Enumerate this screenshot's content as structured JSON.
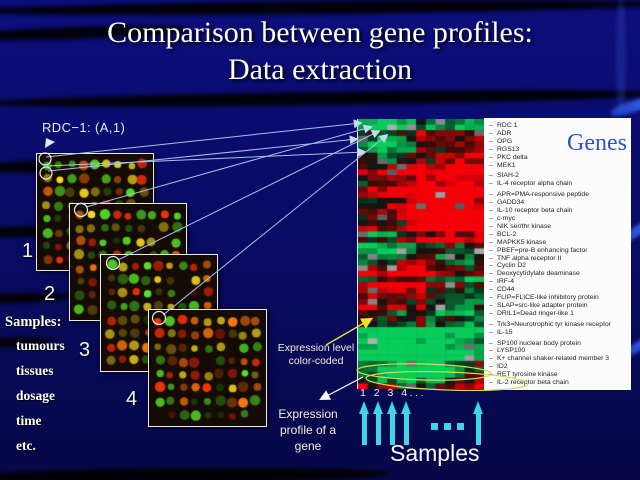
{
  "title": {
    "line1": "Comparison between gene profiles:",
    "line2": "Data extraction"
  },
  "annotations": {
    "spot_label": "RDC−1: (A,1)",
    "expression_level_line1": "Expression level",
    "expression_level_line2": "color-coded",
    "expression_profile_line1": "Expression",
    "expression_profile_line2": "profile of a",
    "expression_profile_line3": "gene",
    "sample_numbers": "1 2 3 4...",
    "samples_axis_label": "Samples",
    "genes_label": "Genes"
  },
  "samples_list": {
    "heading": "Samples:",
    "items": [
      "tumours",
      "tissues",
      "dosage",
      "time",
      "etc."
    ]
  },
  "array_panels": [
    {
      "label": "1"
    },
    {
      "label": "2"
    },
    {
      "label": "3"
    },
    {
      "label": "4"
    }
  ],
  "gene_groups": [
    [
      "RDC 1",
      "ADR",
      "OPG",
      "RGS13",
      "PKC delta",
      "MEK1"
    ],
    [
      "SIAH-2",
      "IL-4 receptor alpha chain"
    ],
    [
      "APR=PMA-responsive peptide",
      "GADD34",
      "IL-10 receptor beta chain",
      "c-myc",
      "NIK ser/thr kinase",
      "BCL-2",
      "MAPKK5 kinase",
      "PBEF=pre-B enhancing factor",
      "TNF alpha receptor II",
      "Cyclin D2",
      "Deoxycytidylate deaminase",
      "IRF-4",
      "CD44",
      "FLIP=FLICE-like inhibitory protein",
      "SLAP=src-like adapter protein",
      "DRIL1=Dead ringer-like 1"
    ],
    [
      "Trk3=Neurotrophic tyr kinase receptor",
      "IL-15"
    ],
    [
      "SP100 nuclear body protein",
      "LYSP100",
      "K+ channel shaker-related member 3",
      "ID2",
      "RET tyrosine kinase",
      "IL-2 receptor beta chain"
    ]
  ],
  "colors": {
    "slide_navy": "#0a0c70",
    "accent_cyan": "#3fd4e6",
    "annotation_blue": "#a8c0ec",
    "highlight_yellow": "#f0e32a",
    "highlight_green_yellow": "#cde24a",
    "genes_blue": "#2e52cc",
    "heatmap_red": "#dd1111",
    "heatmap_green": "#18a85c"
  },
  "microarray": {
    "rows": 8,
    "cols": 9,
    "seeds": [
      11,
      23,
      37,
      49
    ]
  },
  "heatmap": {
    "cols": 13,
    "rows": 48,
    "seed": 7
  }
}
